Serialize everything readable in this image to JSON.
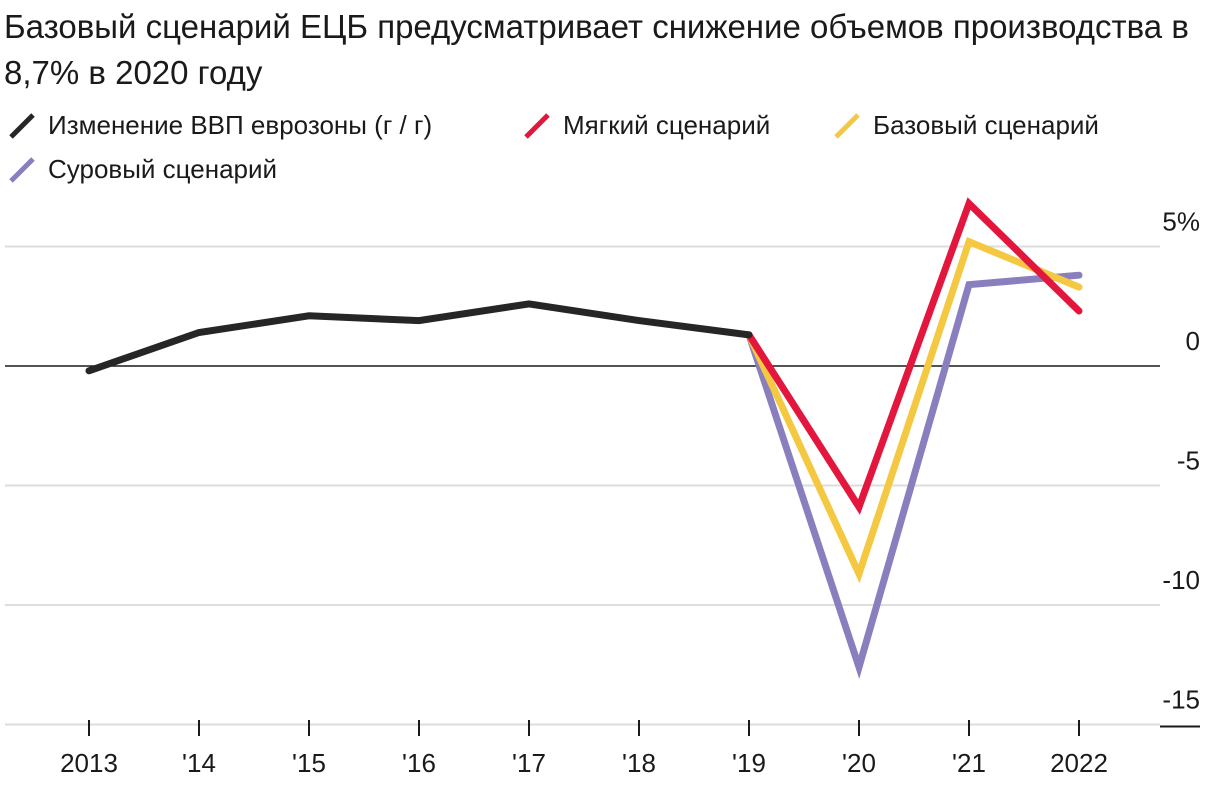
{
  "title": "Базовый сценарий ЕЦБ предусматривает снижение объемов производства в 8,7% в 2020 году",
  "chart_data": {
    "type": "line",
    "title": "Базовый сценарий ЕЦБ предусматривает снижение объемов производства в 8,7% в 2020 году",
    "x": [
      2013,
      2014,
      2015,
      2016,
      2017,
      2018,
      2019,
      2020,
      2021,
      2022
    ],
    "x_tick_labels": [
      "2013",
      "'14",
      "'15",
      "'16",
      "'17",
      "'18",
      "'19",
      "'20",
      "'21",
      "2022"
    ],
    "y_tick_labels": [
      "5%",
      "0",
      "-5",
      "-10",
      "-15"
    ],
    "y_ticks": [
      5,
      0,
      -5,
      -10,
      -15
    ],
    "ylim": [
      -15,
      6.5
    ],
    "grid": true,
    "legend_position": "top-left",
    "series": [
      {
        "name": "Изменение ВВП еврозоны (г / г)",
        "color": "#262626",
        "x": [
          2013,
          2014,
          2015,
          2016,
          2017,
          2018,
          2019
        ],
        "values": [
          -0.2,
          1.4,
          2.1,
          1.9,
          2.6,
          1.9,
          1.3
        ]
      },
      {
        "name": "Мягкий сценарий",
        "color": "#e3173e",
        "x": [
          2019,
          2020,
          2021,
          2022
        ],
        "values": [
          1.3,
          -5.9,
          6.8,
          2.3
        ]
      },
      {
        "name": "Базовый сценарий",
        "color": "#f5c842",
        "x": [
          2019,
          2020,
          2021,
          2022
        ],
        "values": [
          1.3,
          -8.7,
          5.2,
          3.3
        ]
      },
      {
        "name": "Суровый сценарий",
        "color": "#8a7fbe",
        "x": [
          2019,
          2020,
          2021,
          2022
        ],
        "values": [
          1.3,
          -12.6,
          3.4,
          3.8
        ]
      }
    ]
  }
}
